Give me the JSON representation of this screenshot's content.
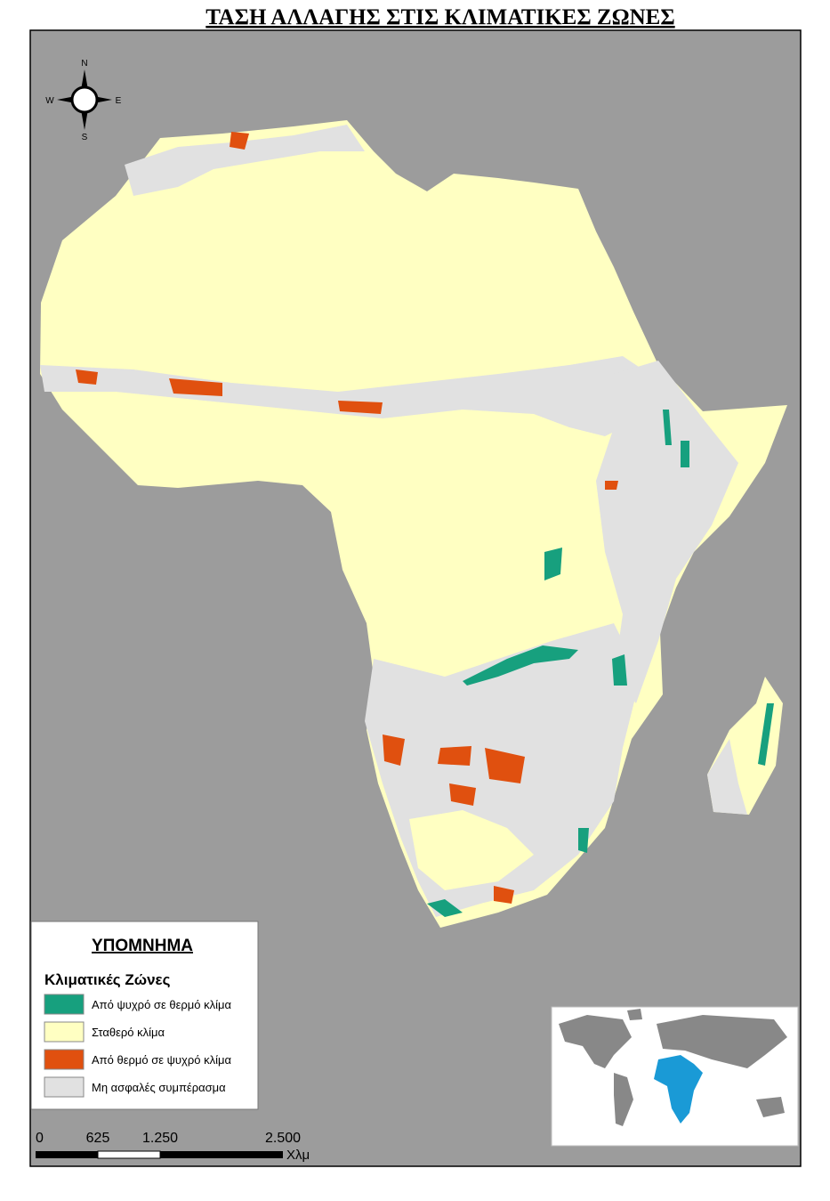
{
  "title": "ΤΑΣΗ ΑΛΛΑΓΗΣ ΣΤΙΣ ΚΛΙΜΑΤΙΚΕΣ ΖΩΝΕΣ",
  "compass": {
    "north": "N",
    "south": "S",
    "east": "E",
    "west": "W"
  },
  "legend": {
    "title": "ΥΠΟΜΝΗΜΑ",
    "subtitle": "Κλιματικές Ζώνες",
    "items": [
      {
        "label": "Από ψυχρό σε θερμό κλίμα",
        "color": "#17a07e"
      },
      {
        "label": "Σταθερό κλίμα",
        "color": "#ffffc2"
      },
      {
        "label": "Από θερμό σε ψυχρό κλίμα",
        "color": "#e0500f"
      },
      {
        "label": "Μη ασφαλές  συμπέρασμα",
        "color": "#e1e1e1"
      }
    ]
  },
  "scale_bar": {
    "labels": [
      "0",
      "625",
      "1.250",
      "2.500"
    ],
    "unit": "Χλμ"
  }
}
